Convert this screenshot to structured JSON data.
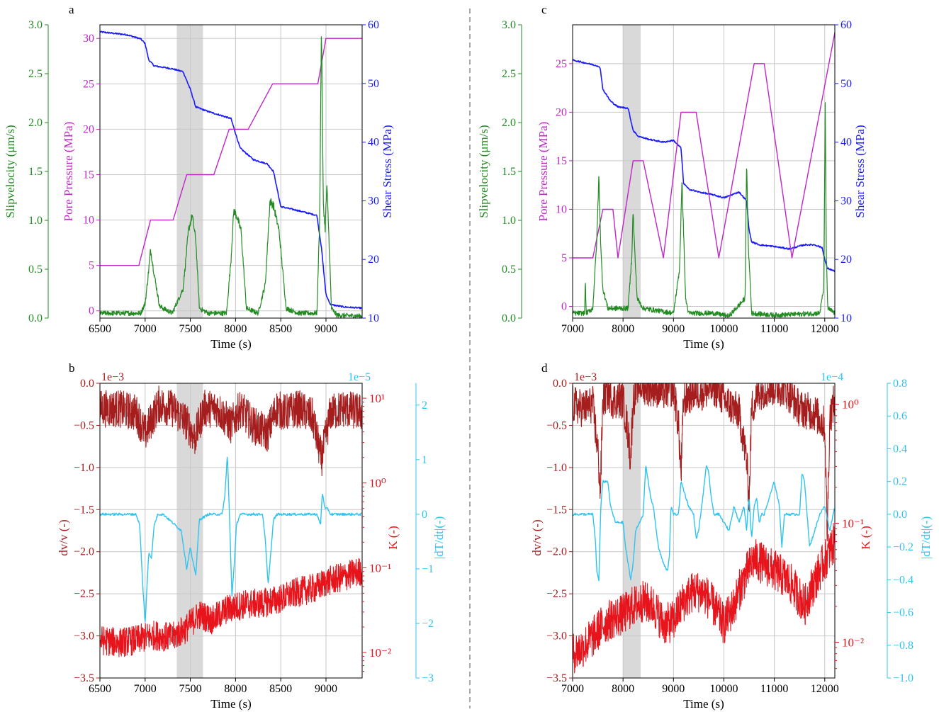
{
  "colors": {
    "green": "#228b22",
    "magenta": "#c026c8",
    "blue": "#1a1aff",
    "darkred": "#a51d1d",
    "red": "#e8141c",
    "cyan": "#2ec4f0",
    "shade": "#d9d9d9",
    "grid": "#c8c8c8",
    "divider": "#888888"
  },
  "chart_data": [
    {
      "panel": "a",
      "type": "line",
      "xlabel": "Time (s)",
      "xlim": [
        6500,
        9400
      ],
      "xticks": [
        6500,
        7000,
        7500,
        8000,
        8500,
        9000
      ],
      "shaded_region": [
        7350,
        7640
      ],
      "axes": {
        "slipvelocity": {
          "label": "Slipvelocity (μm/s)",
          "lim": [
            0,
            3.0
          ],
          "ticks": [
            "0.0",
            "0.5",
            "1.0",
            "1.5",
            "2.0",
            "2.5",
            "3.0"
          ]
        },
        "pore_pressure": {
          "label": "Pore Pressure (MPa)",
          "lim": [
            -0.8,
            31.5
          ],
          "ticks": [
            "0",
            "5",
            "10",
            "15",
            "20",
            "25",
            "30"
          ]
        },
        "shear_stress": {
          "label": "Shear Stress (MPa)",
          "lim": [
            10,
            60
          ],
          "ticks": [
            "10",
            "20",
            "30",
            "40",
            "50",
            "60"
          ]
        }
      },
      "series": [
        {
          "axis": "pore_pressure",
          "x": [
            6500,
            6930,
            7060,
            7310,
            7460,
            7760,
            7930,
            8140,
            8410,
            8650,
            8910,
            9000,
            9400
          ],
          "y": [
            5,
            5,
            10,
            10,
            15,
            15,
            20,
            20,
            25,
            25,
            25,
            30,
            30
          ]
        },
        {
          "axis": "shear_stress",
          "x": [
            6500,
            6800,
            6950,
            7000,
            7040,
            7100,
            7300,
            7420,
            7500,
            7560,
            7700,
            7850,
            7950,
            8050,
            8200,
            8350,
            8420,
            8500,
            8700,
            8900,
            8950,
            9000,
            9050,
            9200,
            9400
          ],
          "y": [
            58.8,
            58.3,
            57.6,
            56.8,
            54.0,
            53.0,
            52.5,
            52.0,
            49.0,
            46.0,
            45.2,
            44.5,
            44.0,
            39.0,
            37.0,
            36.3,
            35.0,
            29.0,
            28.3,
            27.5,
            22.0,
            14.0,
            12.3,
            11.9,
            11.7
          ]
        },
        {
          "axis": "slipvelocity",
          "x": [
            6500,
            6950,
            7000,
            7030,
            7060,
            7100,
            7160,
            7300,
            7420,
            7480,
            7520,
            7560,
            7600,
            7700,
            7900,
            7950,
            7980,
            8010,
            8060,
            8120,
            8250,
            8330,
            8380,
            8420,
            8480,
            8560,
            8700,
            8900,
            8930,
            8950,
            8970,
            8990,
            9010,
            9030,
            9060,
            9120,
            9400
          ],
          "y": [
            0.05,
            0.05,
            0.15,
            0.4,
            0.7,
            0.45,
            0.12,
            0.05,
            0.3,
            0.9,
            1.05,
            0.8,
            0.1,
            0.05,
            0.05,
            0.6,
            1.1,
            1.05,
            0.9,
            0.1,
            0.05,
            0.35,
            1.2,
            1.15,
            0.9,
            0.1,
            0.05,
            0.05,
            1.0,
            3.0,
            1.2,
            0.9,
            1.35,
            0.9,
            0.1,
            0.03,
            0.02
          ]
        }
      ]
    },
    {
      "panel": "b",
      "type": "line",
      "xlabel": "Time (s)",
      "xlim": [
        6500,
        9400
      ],
      "xticks": [
        6500,
        7000,
        7500,
        8000,
        8500,
        9000
      ],
      "shaded_region": [
        7350,
        7640
      ],
      "multiplier_left": "1e−3",
      "multiplier_right": "1e−5",
      "axes": {
        "dvv": {
          "label": "dv/v (-)",
          "lim": [
            -3.5,
            0.0
          ],
          "ticks": [
            "0.0",
            "−0.5",
            "−1.0",
            "−1.5",
            "−2.0",
            "−2.5",
            "−3.0",
            "−3.5"
          ]
        },
        "k": {
          "label": "K (-)",
          "scale": "log",
          "lim": [
            0.005,
            15
          ],
          "ticks": [
            "10⁻²",
            "10⁻¹",
            "10⁰",
            "10¹"
          ]
        },
        "dtdt": {
          "label": "|dT/dt|(-)",
          "lim": [
            -3,
            2.4
          ],
          "ticks": [
            "2",
            "1",
            "0",
            "−1",
            "−2",
            "−3"
          ]
        }
      },
      "series": [
        {
          "axis": "dvv",
          "x": [
            6500,
            6700,
            6900,
            7000,
            7150,
            7300,
            7450,
            7550,
            7650,
            7800,
            7950,
            8050,
            8200,
            8350,
            8450,
            8550,
            8700,
            8850,
            8950,
            9050,
            9200,
            9400
          ],
          "y": [
            -0.3,
            -0.3,
            -0.35,
            -0.6,
            -0.25,
            -0.3,
            -0.45,
            -0.65,
            -0.3,
            -0.3,
            -0.5,
            -0.3,
            -0.5,
            -0.6,
            -0.3,
            -0.35,
            -0.3,
            -0.4,
            -0.9,
            -0.35,
            -0.3,
            -0.35
          ]
        },
        {
          "axis": "k",
          "x": [
            6500,
            6700,
            6900,
            7100,
            7300,
            7450,
            7600,
            7750,
            7900,
            8100,
            8300,
            8500,
            8700,
            8900,
            9000,
            9200,
            9400
          ],
          "y": [
            0.014,
            0.013,
            0.014,
            0.016,
            0.015,
            0.019,
            0.028,
            0.024,
            0.032,
            0.037,
            0.038,
            0.043,
            0.052,
            0.058,
            0.068,
            0.078,
            0.092
          ]
        },
        {
          "axis": "dtdt",
          "x": [
            6500,
            6900,
            6940,
            6970,
            7000,
            7040,
            7070,
            7100,
            7140,
            7200,
            7400,
            7460,
            7500,
            7530,
            7560,
            7600,
            7700,
            7850,
            7880,
            7910,
            7930,
            7960,
            7990,
            8010,
            8050,
            8300,
            8330,
            8360,
            8390,
            8420,
            8460,
            8900,
            8940,
            8960,
            8990,
            9020,
            9050,
            9400
          ],
          "y": [
            0,
            0,
            -0.2,
            -1.2,
            -2.0,
            -0.7,
            -0.8,
            -0.2,
            0,
            0,
            -0.3,
            -1.0,
            -0.6,
            -0.9,
            -1.1,
            -0.1,
            0,
            0,
            0.3,
            1.1,
            0.1,
            -1.5,
            -0.8,
            -0.2,
            0,
            0,
            -0.5,
            -1.3,
            -0.7,
            -0.1,
            0,
            0,
            -0.2,
            0.4,
            0.1,
            0.1,
            0,
            0
          ]
        }
      ]
    },
    {
      "panel": "c",
      "type": "line",
      "xlabel": "Time (s)",
      "xlim": [
        7000,
        12200
      ],
      "xticks": [
        7000,
        8000,
        9000,
        10000,
        11000,
        12000
      ],
      "shaded_region": [
        8000,
        8350
      ],
      "axes": {
        "slipvelocity": {
          "label": "Slipvelocity (μm/s)",
          "lim": [
            0,
            3.0
          ],
          "ticks": [
            "0.0",
            "0.5",
            "1.0",
            "1.5",
            "2.0",
            "2.5",
            "3.0"
          ]
        },
        "pore_pressure": {
          "label": "Pore Pressure (MPa)",
          "lim": [
            -1.2,
            29
          ],
          "ticks": [
            "0",
            "5",
            "10",
            "15",
            "20",
            "25"
          ]
        },
        "shear_stress": {
          "label": "Shear Stress (MPa)",
          "lim": [
            10,
            60
          ],
          "ticks": [
            "10",
            "20",
            "30",
            "40",
            "50",
            "60"
          ]
        }
      },
      "series": [
        {
          "axis": "pore_pressure",
          "x": [
            7000,
            7400,
            7600,
            7800,
            7900,
            8200,
            8400,
            8800,
            9150,
            9450,
            9900,
            10600,
            10800,
            11350,
            12200
          ],
          "y": [
            5,
            5,
            10,
            10,
            5,
            15,
            15,
            5,
            20,
            20,
            5,
            25,
            25,
            5,
            28.2
          ]
        },
        {
          "axis": "shear_stress",
          "x": [
            7000,
            7500,
            7550,
            7600,
            7750,
            7900,
            8100,
            8200,
            8300,
            8500,
            8800,
            9000,
            9150,
            9200,
            9300,
            9500,
            9800,
            10000,
            10300,
            10450,
            10500,
            10550,
            10700,
            11000,
            11300,
            11600,
            11800,
            11950,
            12000,
            12050,
            12200
          ],
          "y": [
            54,
            53,
            52.5,
            49,
            47,
            46,
            45.8,
            42,
            41,
            40.5,
            40,
            40.3,
            39,
            33,
            32,
            31.5,
            31,
            30.5,
            31.5,
            30,
            25,
            23,
            22.5,
            22.2,
            21.8,
            22.5,
            22.5,
            22,
            20,
            18.5,
            18
          ]
        },
        {
          "axis": "slipvelocity",
          "x": [
            7000,
            7240,
            7250,
            7270,
            7400,
            7480,
            7520,
            7560,
            7600,
            7700,
            8100,
            8170,
            8200,
            8230,
            8280,
            8400,
            9000,
            9120,
            9170,
            9200,
            9240,
            9300,
            9800,
            10100,
            10420,
            10450,
            10480,
            10550,
            11000,
            11900,
            11980,
            12010,
            12030,
            12060,
            12200
          ],
          "y": [
            0.05,
            0.05,
            0.4,
            0.05,
            0.1,
            0.8,
            1.45,
            0.7,
            0.3,
            0.1,
            0.1,
            0.6,
            1.1,
            0.7,
            0.2,
            0.1,
            0.05,
            0.5,
            1.4,
            0.9,
            0.2,
            0.05,
            0.05,
            0.02,
            0.2,
            1.6,
            0.8,
            0.05,
            0.03,
            0.05,
            0.3,
            2.2,
            0.7,
            0.1,
            0.05
          ]
        }
      ]
    },
    {
      "panel": "d",
      "type": "line",
      "xlabel": "Time (s)",
      "xlim": [
        7000,
        12200
      ],
      "xticks": [
        7000,
        8000,
        9000,
        10000,
        11000,
        12000
      ],
      "shaded_region": [
        8000,
        8350
      ],
      "multiplier_left": "1e−3",
      "multiplier_right": "1e−4",
      "axes": {
        "dvv": {
          "label": "dv/v (-)",
          "lim": [
            -3.5,
            0.0
          ],
          "ticks": [
            "0.0",
            "−0.5",
            "−1.0",
            "−1.5",
            "−2.0",
            "−2.5",
            "−3.0",
            "−3.5"
          ]
        },
        "k": {
          "label": "K (-)",
          "scale": "log",
          "lim": [
            0.005,
            1.5
          ],
          "ticks": [
            "10⁻²",
            "10⁻¹",
            "10⁰"
          ]
        },
        "dtdt": {
          "label": "|dT/dt|(-)",
          "lim": [
            -1.0,
            0.8
          ],
          "ticks": [
            "0.8",
            "0.6",
            "0.4",
            "0.2",
            "0.0",
            "−0.2",
            "−0.4",
            "−0.6",
            "−0.8",
            "−1.0"
          ]
        }
      },
      "series": [
        {
          "axis": "dvv",
          "x": [
            7000,
            7200,
            7400,
            7500,
            7550,
            7600,
            7700,
            7800,
            8000,
            8100,
            8150,
            8200,
            8300,
            8500,
            8600,
            8800,
            9000,
            9100,
            9150,
            9200,
            9400,
            9600,
            9800,
            9900,
            10000,
            10300,
            10450,
            10500,
            10550,
            10700,
            10900,
            11200,
            11500,
            11800,
            12000,
            12050,
            12100,
            12200
          ],
          "y": [
            -0.25,
            -0.3,
            -0.25,
            -0.8,
            -1.3,
            -0.2,
            -0.1,
            -0.2,
            -0.2,
            -0.6,
            -0.9,
            -0.2,
            0,
            -0.05,
            -0.05,
            -0.1,
            -0.05,
            -0.5,
            -1.1,
            -0.2,
            -0.1,
            -0.1,
            -0.05,
            -0.1,
            -0.2,
            -0.35,
            -0.9,
            -1.4,
            -0.3,
            -0.1,
            -0.05,
            -0.05,
            -0.3,
            -0.35,
            -0.5,
            -1.8,
            -0.4,
            -0.2
          ]
        },
        {
          "axis": "k",
          "x": [
            7000,
            7200,
            7400,
            7600,
            7800,
            8000,
            8200,
            8400,
            8600,
            8800,
            9000,
            9200,
            9400,
            9600,
            9800,
            10000,
            10200,
            10400,
            10600,
            10800,
            11000,
            11200,
            11400,
            11600,
            11800,
            12000,
            12200
          ],
          "y": [
            0.008,
            0.009,
            0.011,
            0.014,
            0.016,
            0.017,
            0.02,
            0.022,
            0.02,
            0.014,
            0.015,
            0.022,
            0.027,
            0.026,
            0.02,
            0.014,
            0.02,
            0.034,
            0.05,
            0.045,
            0.04,
            0.035,
            0.028,
            0.02,
            0.032,
            0.048,
            0.07
          ]
        },
        {
          "axis": "dtdt",
          "x": [
            7000,
            7400,
            7450,
            7480,
            7520,
            7560,
            7600,
            7700,
            7750,
            7800,
            7850,
            8000,
            8050,
            8100,
            8150,
            8200,
            8250,
            8400,
            8450,
            8500,
            8550,
            8600,
            8700,
            8800,
            8880,
            8920,
            8950,
            9000,
            9100,
            9150,
            9200,
            9300,
            9400,
            9450,
            9500,
            9600,
            9650,
            9700,
            9750,
            9800,
            9900,
            10000,
            10100,
            10200,
            10300,
            10400,
            10450,
            10480,
            10500,
            10550,
            10600,
            10650,
            10700,
            10750,
            10800,
            10900,
            11000,
            11100,
            11150,
            11200,
            11250,
            11300,
            11400,
            11500,
            11550,
            11600,
            11700,
            11900,
            12000,
            12100,
            12200
          ],
          "y": [
            0,
            0,
            -0.15,
            -0.35,
            -0.4,
            0.05,
            0.2,
            0.2,
            0.05,
            0,
            -0.05,
            -0.05,
            -0.2,
            -0.3,
            -0.4,
            -0.3,
            -0.1,
            0,
            0.3,
            0.2,
            0.1,
            0.05,
            -0.2,
            -0.3,
            -0.35,
            -0.25,
            0.05,
            0,
            0,
            0.2,
            0.15,
            0.05,
            0,
            -0.15,
            -0.1,
            0.15,
            0.3,
            0.25,
            0.1,
            0,
            0,
            -0.05,
            -0.1,
            0.05,
            -0.05,
            0.05,
            -0.1,
            0.05,
            0.1,
            -0.15,
            0.05,
            0.1,
            -0.05,
            0,
            0,
            0.1,
            0.2,
            0.05,
            -0.2,
            0,
            0,
            0,
            0,
            0,
            0.25,
            0.2,
            -0.2,
            0,
            0.05,
            -0.1,
            0.05
          ]
        }
      ]
    }
  ]
}
